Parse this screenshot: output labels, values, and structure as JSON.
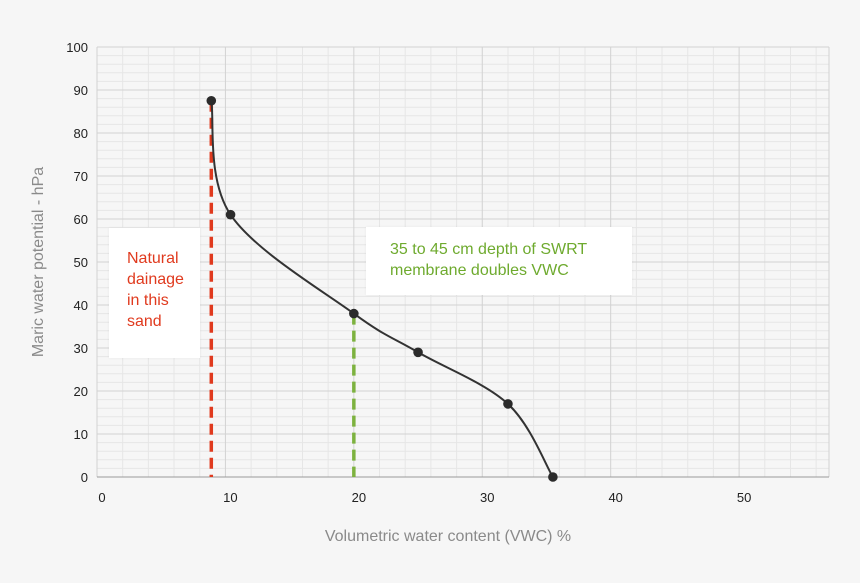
{
  "chart_data": {
    "type": "line",
    "xlabel": "Volumetric water content (VWC) %",
    "ylabel": "Maric water potential - hPa",
    "xlim": [
      0,
      57
    ],
    "ylim": [
      0,
      100
    ],
    "x_ticks": [
      "0",
      "10",
      "20",
      "30",
      "40",
      "50"
    ],
    "y_ticks": [
      "0",
      "10",
      "20",
      "30",
      "40",
      "50",
      "60",
      "70",
      "80",
      "90",
      "100"
    ],
    "grid": true,
    "series": [
      {
        "x": [
          8.9,
          10.4,
          20.0,
          25.0,
          32.0,
          35.5
        ],
        "y": [
          87.5,
          61,
          38,
          29,
          17,
          0
        ]
      }
    ],
    "reference_lines": [
      {
        "x": 8.9,
        "y_top": 87.5,
        "color": "#e03a1e"
      },
      {
        "x": 20.0,
        "y_top": 38,
        "color": "#7db23f"
      }
    ],
    "annotations": [
      {
        "text": "Natural dainage in this sand",
        "lines": [
          "Natural",
          "dainage",
          "in this",
          "sand"
        ],
        "color": "#e03a1e"
      },
      {
        "text": "35 to 45 cm depth of SWRT membrane doubles VWC",
        "lines": [
          "35 to 45 cm depth of SWRT",
          "membrane doubles VWC"
        ],
        "color": "#6eaa2e"
      }
    ],
    "colors": {
      "curve": "#333333",
      "point": "#2b2b2b",
      "grid": "#d2d2d2",
      "background": "#f6f6f6"
    }
  }
}
